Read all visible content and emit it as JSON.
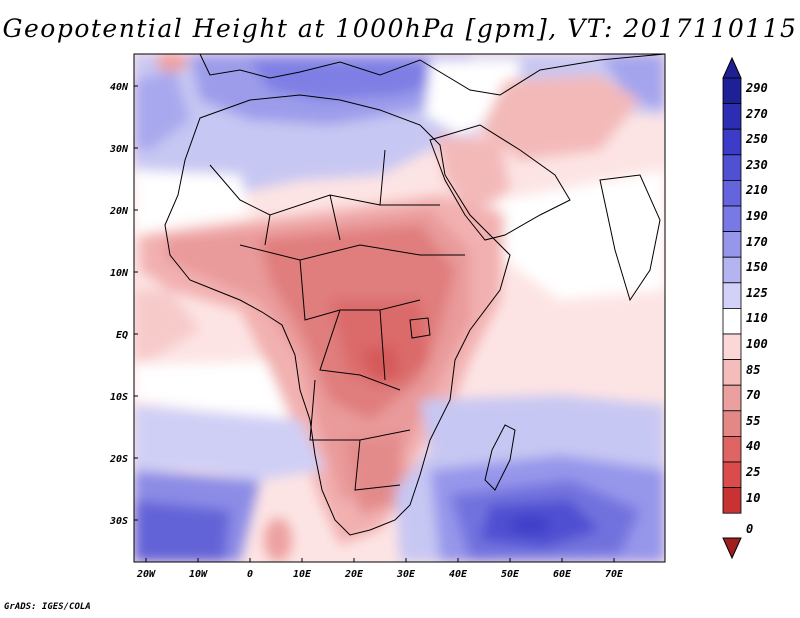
{
  "title": "Geopotential Height at 1000hPa [gpm], VT: 2017110115",
  "credit": "GrADS: IGES/COLA",
  "map": {
    "lon_range": [
      -22,
      80
    ],
    "lat_range": [
      -37,
      45
    ],
    "lon_ticks": [
      "20W",
      "10W",
      "0",
      "10E",
      "20E",
      "30E",
      "40E",
      "50E",
      "60E",
      "70E"
    ],
    "lat_ticks": [
      "40N",
      "30N",
      "20N",
      "10N",
      "EQ",
      "10S",
      "20S",
      "30S"
    ]
  },
  "colorbar": {
    "levels": [
      "290",
      "270",
      "250",
      "230",
      "210",
      "190",
      "170",
      "150",
      "125",
      "110",
      "100",
      "85",
      "70",
      "55",
      "40",
      "25",
      "10",
      "0"
    ],
    "colors": [
      "#1f1f96",
      "#2d2db4",
      "#3c3cc8",
      "#5050d2",
      "#6464dc",
      "#7878e6",
      "#9696eb",
      "#b4b4f0",
      "#d2d2f8",
      "#ffffff",
      "#fbd7d7",
      "#f5bcbc",
      "#eba0a0",
      "#e48787",
      "#df6464",
      "#da4b4b",
      "#c83232",
      "#a01e1e"
    ]
  }
}
